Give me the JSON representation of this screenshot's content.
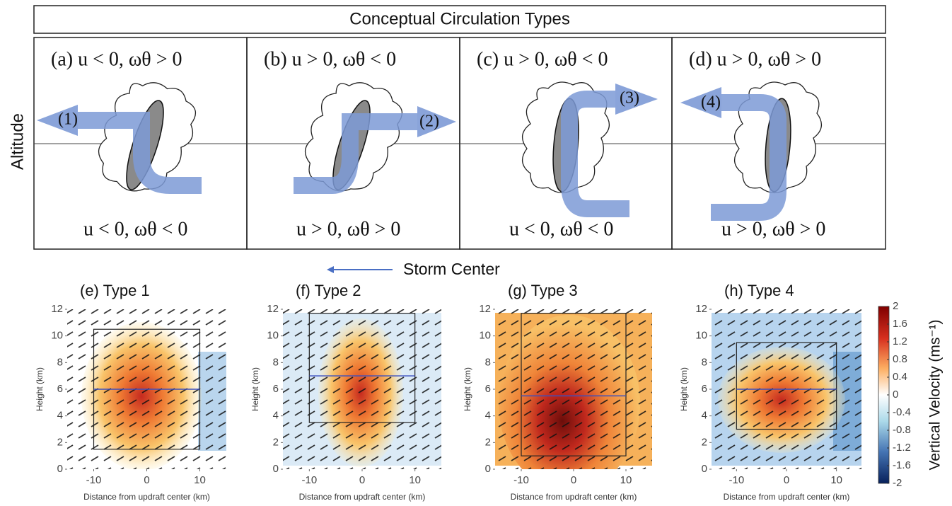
{
  "header": {
    "title": "Conceptual Circulation Types"
  },
  "y_label": "Altitude",
  "concepts": [
    {
      "top": "(a) u < 0,  ωθ > 0",
      "bottom": "u < 0, ωθ < 0",
      "arrow": "(1)"
    },
    {
      "top": "(b) u > 0,  ωθ < 0",
      "bottom": "u > 0, ωθ > 0",
      "arrow": "(2)"
    },
    {
      "top": "(c) u > 0,  ωθ < 0",
      "bottom": "u < 0, ωθ < 0",
      "arrow": "(3)"
    },
    {
      "top": "(d) u > 0, ωθ > 0",
      "bottom": "u > 0, ωθ > 0",
      "arrow": "(4)"
    }
  ],
  "storm_center": "Storm Center",
  "panels": [
    {
      "title": "(e) Type 1",
      "xlabel": "Distance from updraft center (km)",
      "ylabel": "Height (km)",
      "xlim": [
        -15,
        15
      ],
      "ylim": [
        0,
        12
      ],
      "xticks": [
        -10,
        0,
        10
      ],
      "yticks": [
        0,
        2,
        4,
        6,
        8,
        10,
        12
      ]
    },
    {
      "title": "(f) Type 2",
      "xlabel": "Distance from updraft center (km)",
      "ylabel": "Height (km)",
      "xlim": [
        -15,
        15
      ],
      "ylim": [
        0,
        12
      ],
      "xticks": [
        -10,
        0,
        10
      ],
      "yticks": [
        0,
        2,
        4,
        6,
        8,
        10,
        12
      ]
    },
    {
      "title": "(g) Type 3",
      "xlabel": "Distance from updraft center (km)",
      "ylabel": "Height (km)",
      "xlim": [
        -15,
        15
      ],
      "ylim": [
        0,
        12
      ],
      "xticks": [
        -10,
        0,
        10
      ],
      "yticks": [
        0,
        2,
        4,
        6,
        8,
        10,
        12
      ]
    },
    {
      "title": "(h) Type 4",
      "xlabel": "Distance from updraft center (km)",
      "ylabel": "Height (km)",
      "xlim": [
        -15,
        15
      ],
      "ylim": [
        0,
        12
      ],
      "xticks": [
        -10,
        0,
        10
      ],
      "yticks": [
        0,
        2,
        4,
        6,
        8,
        10,
        12
      ]
    }
  ],
  "colorbar": {
    "label": "Vertical Velocity (ms⁻¹)",
    "lim": [
      -2,
      2
    ],
    "ticks": [
      -2,
      -1.6,
      -1.2,
      -0.8,
      -0.4,
      0,
      0.4,
      0.8,
      1.2,
      1.6,
      2
    ]
  }
}
